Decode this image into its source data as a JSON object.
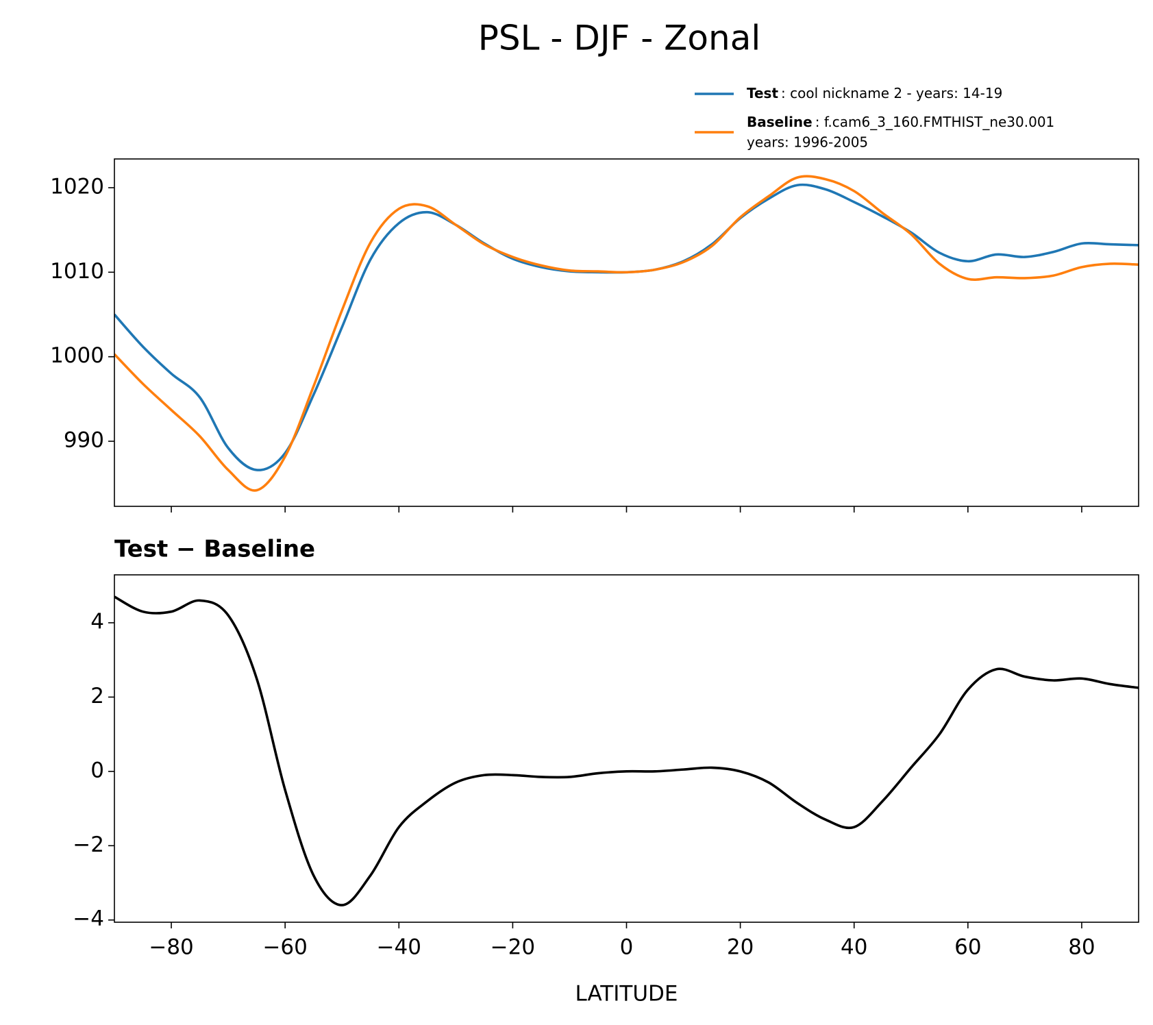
{
  "title": "PSL - DJF - Zonal",
  "chart_data": [
    {
      "type": "line",
      "sharex": true,
      "x": [
        -90,
        -85,
        -80,
        -75,
        -70,
        -65,
        -60,
        -55,
        -50,
        -45,
        -40,
        -35,
        -30,
        -25,
        -20,
        -15,
        -10,
        -5,
        0,
        5,
        10,
        15,
        20,
        25,
        30,
        35,
        40,
        45,
        50,
        55,
        60,
        65,
        70,
        75,
        80,
        85,
        90
      ],
      "series": [
        {
          "name": "Test",
          "description": [
            ": cool nickname 2 - years: 14-19"
          ],
          "color": "#1f77b4",
          "values": [
            1005,
            1001.2,
            998,
            995.2,
            989.2,
            986.6,
            988.6,
            995.5,
            1003.5,
            1011.5,
            1015.8,
            1017.1,
            1015.6,
            1013.4,
            1011.6,
            1010.6,
            1010.1,
            1010,
            1010,
            1010.3,
            1011.3,
            1013.3,
            1016.4,
            1018.7,
            1020.3,
            1019.8,
            1018.3,
            1016.6,
            1014.7,
            1012.3,
            1011.3,
            1012.1,
            1011.8,
            1012.4,
            1013.4,
            1013.3,
            1013.2
          ]
        },
        {
          "name": "Baseline",
          "description": [
            ": f.cam6_3_160.FMTHIST_ne30.001",
            "years: 1996-2005"
          ],
          "color": "#ff7f0e",
          "values": [
            1000.3,
            996.8,
            993.7,
            990.6,
            986.6,
            984.2,
            988.2,
            996.5,
            1005.5,
            1013.5,
            1017.5,
            1017.8,
            1015.6,
            1013.3,
            1011.8,
            1010.8,
            1010.2,
            1010.1,
            1010,
            1010.3,
            1011.2,
            1013.1,
            1016.5,
            1019,
            1021.2,
            1021,
            1019.6,
            1017,
            1014.5,
            1011,
            1009.2,
            1009.4,
            1009.3,
            1009.6,
            1010.6,
            1011,
            1010.9
          ]
        }
      ],
      "xlim": [
        -90,
        90
      ],
      "xticks": [
        -80,
        -60,
        -40,
        -20,
        0,
        20,
        40,
        60,
        80
      ],
      "ylim": [
        982.3,
        1023.4
      ],
      "yticks": [
        990,
        1000,
        1010,
        1020
      ],
      "legend": "upper right"
    },
    {
      "type": "line",
      "title": "Test − Baseline",
      "xlabel": "LATITUDE",
      "x": [
        -90,
        -85,
        -80,
        -75,
        -70,
        -65,
        -60,
        -55,
        -50,
        -45,
        -40,
        -35,
        -30,
        -25,
        -20,
        -15,
        -10,
        -5,
        0,
        5,
        10,
        15,
        20,
        25,
        30,
        35,
        40,
        45,
        50,
        55,
        60,
        65,
        70,
        75,
        80,
        85,
        90
      ],
      "series": [
        {
          "color": "#000000",
          "values": [
            4.7,
            4.3,
            4.3,
            4.6,
            4.2,
            2.5,
            -0.5,
            -2.8,
            -3.6,
            -2.8,
            -1.5,
            -0.8,
            -0.3,
            -0.1,
            -0.1,
            -0.15,
            -0.15,
            -0.05,
            0,
            0,
            0.05,
            0.1,
            0,
            -0.3,
            -0.85,
            -1.3,
            -1.5,
            -0.8,
            0.1,
            1.0,
            2.2,
            2.75,
            2.55,
            2.45,
            2.5,
            2.35,
            2.25
          ]
        }
      ],
      "xlim": [
        -90,
        90
      ],
      "xticks": [
        {
          "value": -80,
          "label": "−80"
        },
        {
          "value": -60,
          "label": "−60"
        },
        {
          "value": -40,
          "label": "−40"
        },
        {
          "value": -20,
          "label": "−20"
        },
        0,
        20,
        40,
        60,
        80
      ],
      "ylim": [
        -4.06,
        5.29
      ],
      "yticks": [
        {
          "value": -4,
          "label": "−4"
        },
        {
          "value": -2,
          "label": "−2"
        },
        0,
        2,
        4
      ]
    }
  ]
}
